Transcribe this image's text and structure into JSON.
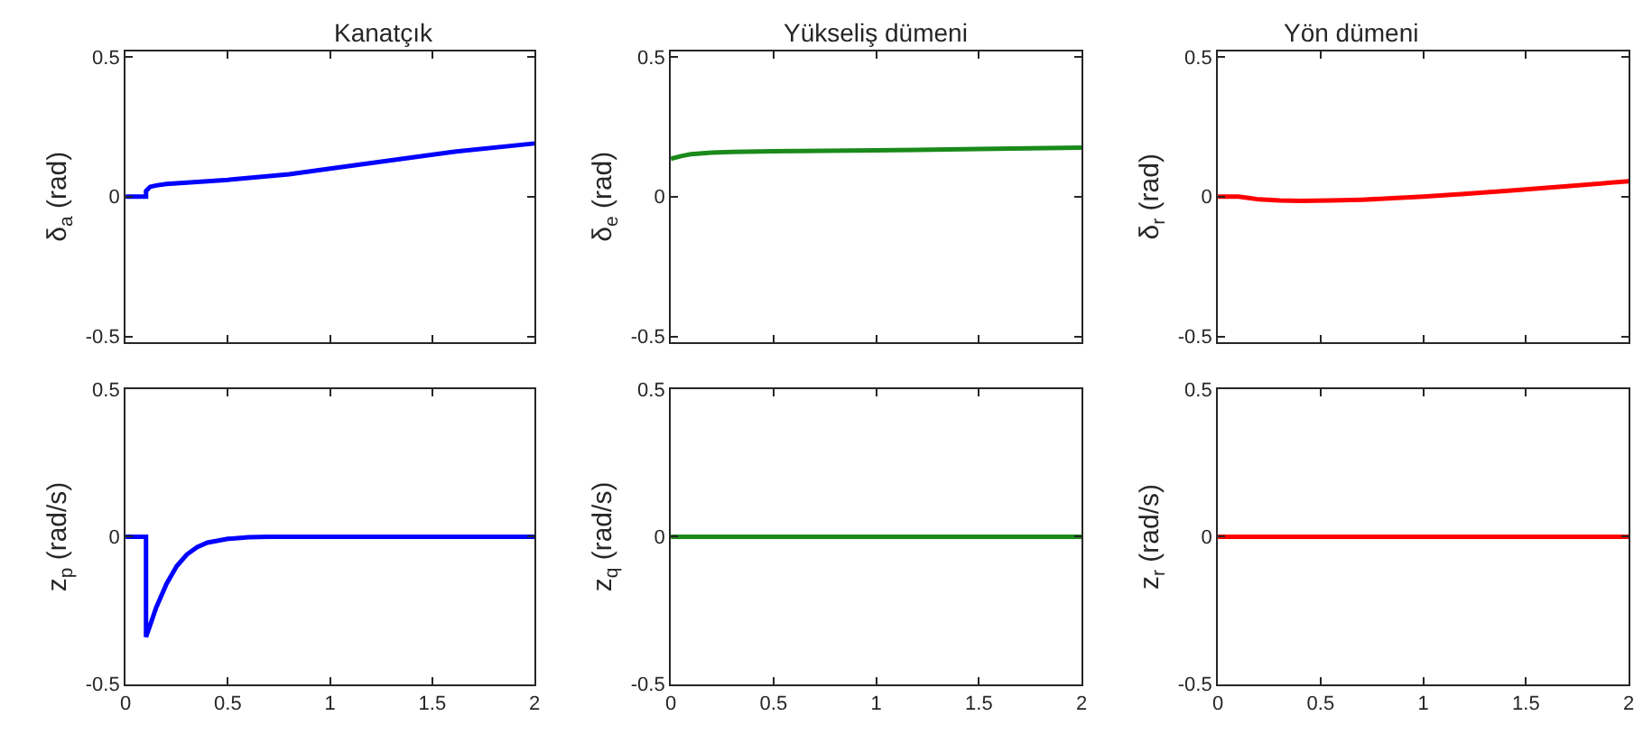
{
  "chart_data": [
    {
      "type": "line",
      "title": "Kanatçık",
      "ylabel": "δ$_{a}$ (rad)",
      "x": [
        0,
        0.1,
        0.1,
        0.12,
        0.15,
        0.2,
        0.3,
        0.5,
        0.8,
        1.0,
        1.3,
        1.6,
        2.0
      ],
      "series": [
        {
          "color": "#0000ff",
          "values": [
            0,
            0,
            0.02,
            0.035,
            0.04,
            0.045,
            0.05,
            0.06,
            0.08,
            0.1,
            0.13,
            0.16,
            0.19
          ]
        }
      ],
      "xlim": [
        0,
        2
      ],
      "xticks": [
        0,
        0.5,
        1,
        1.5,
        2
      ],
      "ylim": [
        -0.52,
        0.52
      ],
      "yticks": [
        -0.5,
        0,
        0.5
      ],
      "tick_labels": "y",
      "line_style": "solid"
    },
    {
      "type": "line",
      "title": "Yükseliş dümeni",
      "ylabel": "δ$_{e}$ (rad)",
      "x": [
        0,
        0.05,
        0.1,
        0.2,
        0.3,
        0.5,
        1.0,
        1.5,
        2.0
      ],
      "series": [
        {
          "color": "#1a8a1a",
          "values": [
            0.135,
            0.145,
            0.152,
            0.157,
            0.16,
            0.162,
            0.165,
            0.17,
            0.175
          ]
        }
      ],
      "xlim": [
        0,
        2
      ],
      "xticks": [
        0,
        0.5,
        1,
        1.5,
        2
      ],
      "ylim": [
        -0.52,
        0.52
      ],
      "yticks": [
        -0.5,
        0,
        0.5
      ],
      "tick_labels": "y",
      "line_style": "solid"
    },
    {
      "type": "line",
      "title": "Yön dümeni",
      "ylabel": "δ$_{r}$ (rad)",
      "x": [
        0,
        0.1,
        0.15,
        0.2,
        0.3,
        0.4,
        0.55,
        0.7,
        0.85,
        1.0,
        1.2,
        1.4,
        1.7,
        2.0
      ],
      "series": [
        {
          "color": "#ff0000",
          "values": [
            0,
            0,
            -0.005,
            -0.01,
            -0.014,
            -0.015,
            -0.014,
            -0.011,
            -0.006,
            0,
            0.01,
            0.02,
            0.037,
            0.055
          ]
        }
      ],
      "xlim": [
        0,
        2
      ],
      "xticks": [
        0,
        0.5,
        1,
        1.5,
        2
      ],
      "ylim": [
        -0.52,
        0.52
      ],
      "yticks": [
        -0.5,
        0,
        0.5
      ],
      "tick_labels": "y",
      "line_style": "solid"
    },
    {
      "type": "line",
      "ylabel": "z$_{p}$ (rad/s)",
      "x": [
        0,
        0.1,
        0.1,
        0.12,
        0.15,
        0.2,
        0.25,
        0.3,
        0.35,
        0.4,
        0.5,
        0.6,
        0.7,
        1.0,
        2.0
      ],
      "series": [
        {
          "color": "#0000ff",
          "values": [
            0,
            0,
            -0.34,
            -0.3,
            -0.24,
            -0.16,
            -0.1,
            -0.06,
            -0.035,
            -0.02,
            -0.007,
            -0.002,
            0,
            0,
            0
          ]
        }
      ],
      "xlim": [
        0,
        2
      ],
      "xticks": [
        0,
        0.5,
        1,
        1.5,
        2
      ],
      "ylim": [
        -0.5,
        0.5
      ],
      "yticks": [
        -0.5,
        0,
        0.5
      ],
      "line_style": "solid"
    },
    {
      "type": "line",
      "ylabel": "z$_{q}$ (rad/s)",
      "x": [
        0,
        2
      ],
      "series": [
        {
          "color": "#1a8a1a",
          "values": [
            0,
            0
          ]
        }
      ],
      "xlim": [
        0,
        2
      ],
      "xticks": [
        0,
        0.5,
        1,
        1.5,
        2
      ],
      "ylim": [
        -0.5,
        0.5
      ],
      "yticks": [
        -0.5,
        0,
        0.5
      ],
      "line_style": "solid"
    },
    {
      "type": "line",
      "ylabel": "z$_{r}$ (rad/s)",
      "x": [
        0,
        2
      ],
      "series": [
        {
          "color": "#ff0000",
          "values": [
            0,
            0
          ]
        }
      ],
      "xlim": [
        0,
        2
      ],
      "xticks": [
        0,
        0.5,
        1,
        1.5,
        2
      ],
      "ylim": [
        -0.5,
        0.5
      ],
      "yticks": [
        -0.5,
        0,
        0.5
      ],
      "line_style": "solid"
    }
  ]
}
